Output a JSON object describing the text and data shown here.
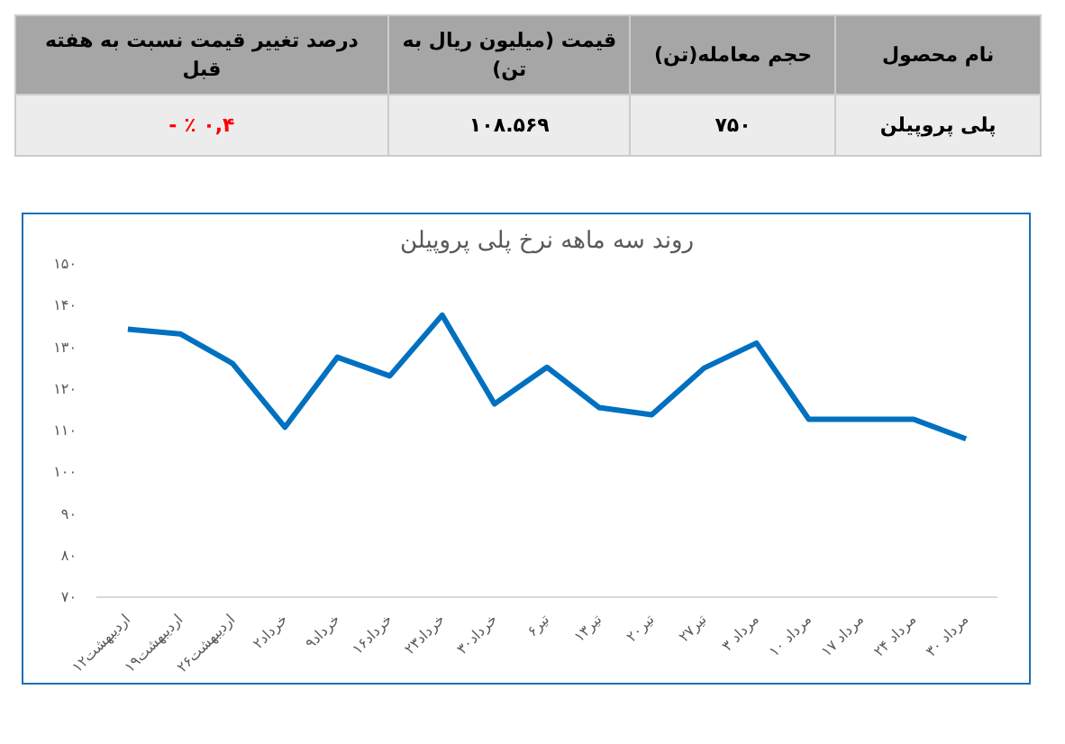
{
  "chart_data": {
    "type": "line",
    "title": "روند سه ماهه نرخ پلی پروپیلن",
    "categories": [
      "۱۲اردیبهشت",
      "۱۹اردیبهشت",
      "۲۶اردیبهشت",
      "۲خرداد",
      "۹خرداد",
      "۱۶خرداد",
      "۲۳خرداد",
      "۳۰خرداد",
      "۶تیر",
      "۱۳تیر",
      "۲۰تیر",
      "۲۷تیر",
      "۳ مرداد",
      "۱۰ مرداد",
      "۱۷ مرداد",
      "۲۴ مرداد",
      "۳۰ مرداد"
    ],
    "series": [
      {
        "color": "#0070c0",
        "values": [
          134.3,
          133.2,
          126.1,
          110.8,
          127.6,
          123.1,
          137.7,
          116.4,
          125.2,
          115.5,
          113.8,
          125,
          131,
          112.7,
          112.7,
          112.7,
          108
        ]
      }
    ],
    "ylim": [
      70,
      150
    ],
    "yticks": [
      {
        "value": 70,
        "label": "۷۰"
      },
      {
        "value": 80,
        "label": "۸۰"
      },
      {
        "value": 90,
        "label": "۹۰"
      },
      {
        "value": 100,
        "label": "۱۰۰"
      },
      {
        "value": 110,
        "label": "۱۱۰"
      },
      {
        "value": 120,
        "label": "۱۲۰"
      },
      {
        "value": 130,
        "label": "۱۳۰"
      },
      {
        "value": 140,
        "label": "۱۴۰"
      },
      {
        "value": 150,
        "label": "۱۵۰"
      }
    ],
    "grid": false,
    "marker": "none",
    "line_style": "solid",
    "annotations": [
      "نام محصول",
      "حجم معامله(تن)",
      "قیمت (میلیون ریال به تن)",
      "درصد تغییر قیمت نسبت به هفته قبل",
      "پلی پروپیلن",
      "۷۵۰",
      "۱۰۸.۵۶۹",
      "۰,۴ ٪ -"
    ]
  }
}
